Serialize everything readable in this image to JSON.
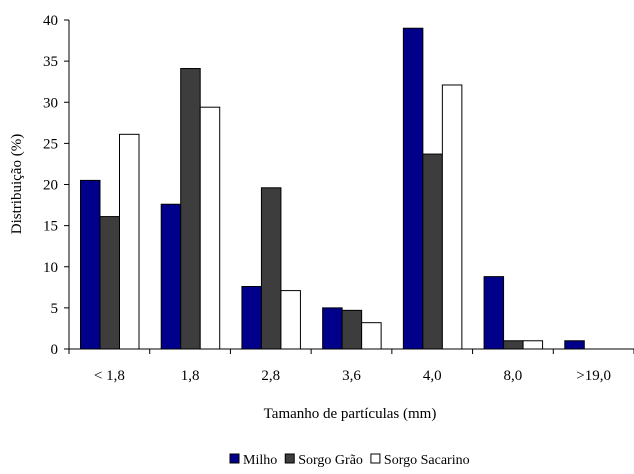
{
  "chart_data": {
    "type": "bar",
    "title": "",
    "xlabel": "Tamanho de partículas (mm)",
    "ylabel": "Distribuição (%)",
    "ylim": [
      0,
      40
    ],
    "yticks": [
      0,
      5,
      10,
      15,
      20,
      25,
      30,
      35,
      40
    ],
    "categories": [
      "< 1,8",
      "1,8",
      "2,8",
      "3,6",
      "4,0",
      "8,0",
      ">19,0"
    ],
    "series": [
      {
        "name": "Milho",
        "color": "#00008b",
        "values": [
          20.5,
          17.6,
          7.6,
          5.0,
          39.0,
          8.8,
          1.0
        ]
      },
      {
        "name": "Sorgo Grão",
        "color": "#3d3d3d",
        "values": [
          16.1,
          34.1,
          19.6,
          4.7,
          23.7,
          1.0,
          0
        ]
      },
      {
        "name": "Sorgo Sacarino",
        "color": "#ffffff",
        "values": [
          26.1,
          29.4,
          7.1,
          3.2,
          32.1,
          1.0,
          0
        ]
      }
    ],
    "legend_position": "bottom-center",
    "grid": false
  }
}
